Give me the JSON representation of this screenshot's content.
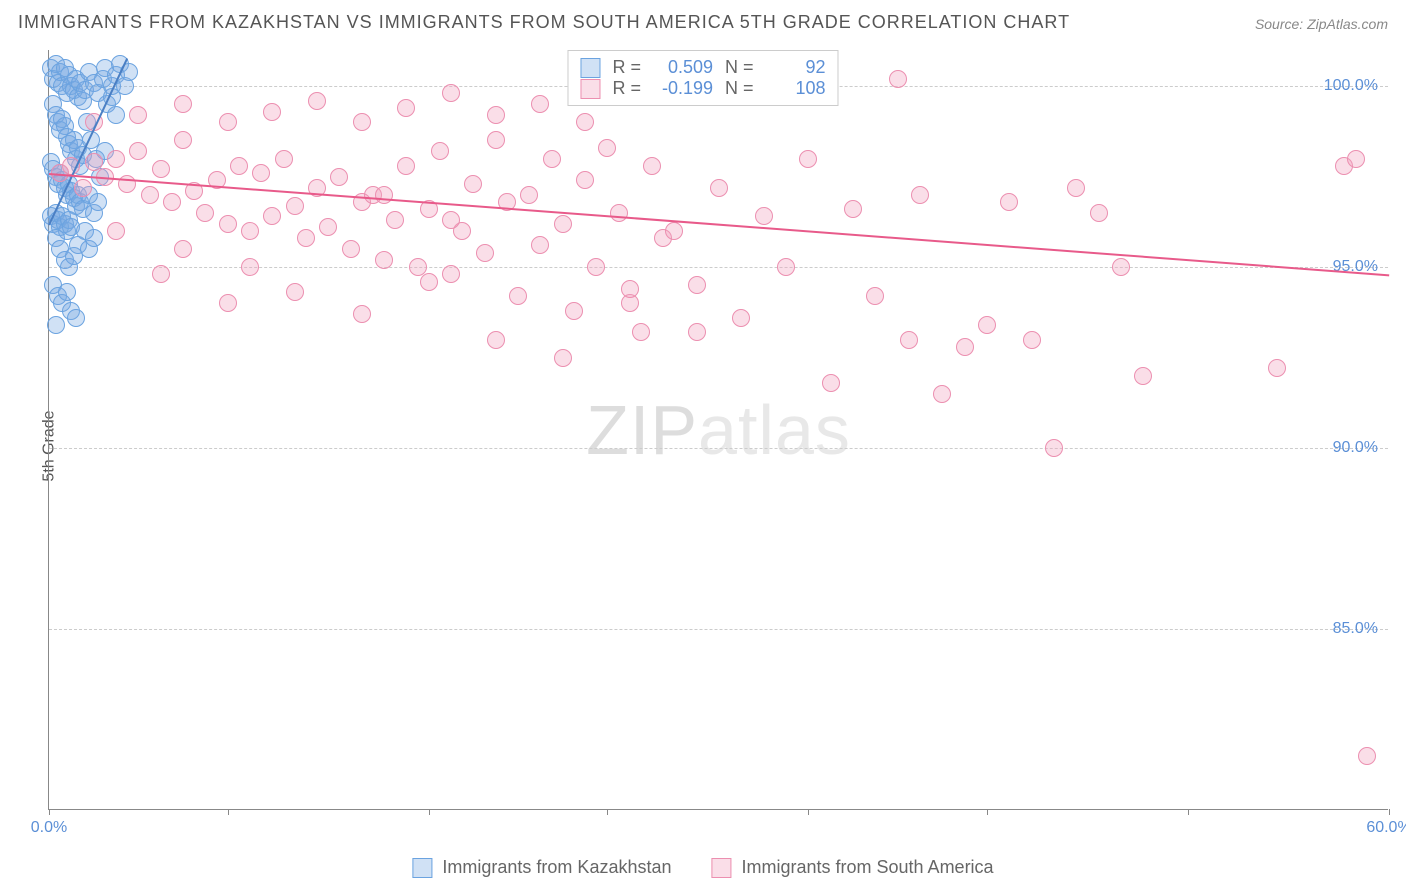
{
  "title": "IMMIGRANTS FROM KAZAKHSTAN VS IMMIGRANTS FROM SOUTH AMERICA 5TH GRADE CORRELATION CHART",
  "source": "Source: ZipAtlas.com",
  "ylabel": "5th Grade",
  "watermark_a": "ZIP",
  "watermark_b": "atlas",
  "chart": {
    "type": "scatter",
    "xlim": [
      0,
      60
    ],
    "ylim": [
      80,
      101
    ],
    "xtick_positions": [
      0,
      8,
      17,
      25,
      34,
      42,
      51,
      60
    ],
    "xtick_labels": {
      "0": "0.0%",
      "60": "60.0%"
    },
    "yticks": [
      85,
      90,
      95,
      100
    ],
    "ytick_labels": [
      "85.0%",
      "90.0%",
      "95.0%",
      "100.0%"
    ],
    "background_color": "#ffffff",
    "grid_color": "#cccccc",
    "axis_color": "#888888",
    "tick_label_color": "#5b8fd6",
    "point_radius": 9,
    "point_stroke_width": 1.5,
    "series": [
      {
        "name": "Immigrants from Kazakhstan",
        "fill": "rgba(120,170,225,0.35)",
        "stroke": "#6ba3e0",
        "r": 0.509,
        "n": 92,
        "trend": {
          "x1": 0,
          "y1": 96.2,
          "x2": 3.5,
          "y2": 100.8,
          "color": "#4a7fc4"
        },
        "points": [
          [
            0.1,
            100.5
          ],
          [
            0.2,
            100.2
          ],
          [
            0.3,
            100.6
          ],
          [
            0.4,
            100.1
          ],
          [
            0.5,
            100.4
          ],
          [
            0.6,
            100.0
          ],
          [
            0.7,
            100.5
          ],
          [
            0.8,
            99.8
          ],
          [
            0.9,
            100.3
          ],
          [
            1.0,
            100.0
          ],
          [
            1.1,
            99.9
          ],
          [
            1.2,
            100.2
          ],
          [
            1.3,
            99.7
          ],
          [
            1.4,
            100.1
          ],
          [
            1.5,
            99.6
          ],
          [
            1.6,
            99.9
          ],
          [
            0.2,
            99.5
          ],
          [
            0.3,
            99.2
          ],
          [
            0.4,
            99.0
          ],
          [
            0.5,
            98.8
          ],
          [
            0.6,
            99.1
          ],
          [
            0.7,
            98.9
          ],
          [
            0.8,
            98.6
          ],
          [
            0.9,
            98.4
          ],
          [
            1.0,
            98.2
          ],
          [
            1.1,
            98.5
          ],
          [
            1.2,
            98.0
          ],
          [
            1.3,
            98.3
          ],
          [
            1.4,
            97.8
          ],
          [
            1.5,
            98.1
          ],
          [
            0.1,
            97.9
          ],
          [
            0.2,
            97.7
          ],
          [
            0.3,
            97.5
          ],
          [
            0.4,
            97.3
          ],
          [
            0.5,
            97.6
          ],
          [
            0.6,
            97.4
          ],
          [
            0.7,
            97.2
          ],
          [
            0.8,
            97.0
          ],
          [
            0.9,
            97.3
          ],
          [
            1.0,
            97.1
          ],
          [
            1.1,
            96.9
          ],
          [
            1.2,
            96.7
          ],
          [
            1.3,
            97.0
          ],
          [
            1.4,
            96.8
          ],
          [
            1.5,
            96.6
          ],
          [
            0.1,
            96.4
          ],
          [
            0.2,
            96.2
          ],
          [
            0.3,
            96.5
          ],
          [
            0.4,
            96.3
          ],
          [
            0.5,
            96.1
          ],
          [
            0.6,
            96.4
          ],
          [
            0.7,
            96.2
          ],
          [
            0.8,
            96.0
          ],
          [
            0.9,
            96.3
          ],
          [
            1.0,
            96.1
          ],
          [
            0.3,
            95.8
          ],
          [
            0.5,
            95.5
          ],
          [
            0.7,
            95.2
          ],
          [
            0.9,
            95.0
          ],
          [
            1.1,
            95.3
          ],
          [
            1.3,
            95.6
          ],
          [
            0.2,
            94.5
          ],
          [
            0.4,
            94.2
          ],
          [
            0.6,
            94.0
          ],
          [
            0.8,
            94.3
          ],
          [
            1.0,
            93.8
          ],
          [
            1.2,
            93.6
          ],
          [
            0.3,
            93.4
          ],
          [
            1.8,
            100.4
          ],
          [
            2.0,
            100.1
          ],
          [
            2.2,
            99.8
          ],
          [
            2.4,
            100.2
          ],
          [
            2.6,
            99.5
          ],
          [
            2.8,
            100.0
          ],
          [
            3.0,
            99.2
          ],
          [
            1.7,
            99.0
          ],
          [
            1.9,
            98.5
          ],
          [
            2.1,
            98.0
          ],
          [
            2.3,
            97.5
          ],
          [
            2.5,
            98.2
          ],
          [
            1.8,
            97.0
          ],
          [
            2.0,
            96.5
          ],
          [
            2.2,
            96.8
          ],
          [
            1.6,
            96.0
          ],
          [
            1.8,
            95.5
          ],
          [
            2.0,
            95.8
          ],
          [
            2.5,
            100.5
          ],
          [
            3.0,
            100.3
          ],
          [
            3.2,
            100.6
          ],
          [
            2.8,
            99.7
          ],
          [
            3.4,
            100.0
          ],
          [
            3.6,
            100.4
          ]
        ]
      },
      {
        "name": "Immigrants from South America",
        "fill": "rgba(240,160,190,0.35)",
        "stroke": "#ec8fb0",
        "r": -0.199,
        "n": 108,
        "trend": {
          "x1": 0,
          "y1": 97.6,
          "x2": 60,
          "y2": 94.8,
          "color": "#e85a8a"
        },
        "points": [
          [
            0.5,
            97.6
          ],
          [
            1.0,
            97.8
          ],
          [
            1.5,
            97.2
          ],
          [
            2.0,
            97.9
          ],
          [
            2.5,
            97.5
          ],
          [
            3.0,
            98.0
          ],
          [
            3.5,
            97.3
          ],
          [
            4.0,
            98.2
          ],
          [
            4.5,
            97.0
          ],
          [
            5.0,
            97.7
          ],
          [
            5.5,
            96.8
          ],
          [
            6.0,
            98.5
          ],
          [
            6.5,
            97.1
          ],
          [
            7.0,
            96.5
          ],
          [
            7.5,
            97.4
          ],
          [
            8.0,
            96.2
          ],
          [
            8.5,
            97.8
          ],
          [
            9.0,
            96.0
          ],
          [
            9.5,
            97.6
          ],
          [
            10.0,
            96.4
          ],
          [
            10.5,
            98.0
          ],
          [
            11.0,
            96.7
          ],
          [
            11.5,
            95.8
          ],
          [
            12.0,
            97.2
          ],
          [
            12.5,
            96.1
          ],
          [
            13.0,
            97.5
          ],
          [
            13.5,
            95.5
          ],
          [
            14.0,
            96.8
          ],
          [
            14.5,
            97.0
          ],
          [
            15.0,
            95.2
          ],
          [
            15.5,
            96.3
          ],
          [
            16.0,
            97.8
          ],
          [
            16.5,
            95.0
          ],
          [
            17.0,
            96.6
          ],
          [
            17.5,
            98.2
          ],
          [
            18.0,
            94.8
          ],
          [
            18.5,
            96.0
          ],
          [
            19.0,
            97.3
          ],
          [
            19.5,
            95.4
          ],
          [
            20.0,
            98.5
          ],
          [
            20.5,
            96.8
          ],
          [
            21.0,
            94.2
          ],
          [
            21.5,
            97.0
          ],
          [
            22.0,
            95.6
          ],
          [
            22.5,
            98.0
          ],
          [
            23.0,
            96.2
          ],
          [
            23.5,
            93.8
          ],
          [
            24.0,
            97.4
          ],
          [
            24.5,
            95.0
          ],
          [
            25.0,
            98.3
          ],
          [
            25.5,
            96.5
          ],
          [
            26.0,
            94.0
          ],
          [
            26.5,
            93.2
          ],
          [
            27.0,
            97.8
          ],
          [
            27.5,
            95.8
          ],
          [
            28.0,
            96.0
          ],
          [
            29.0,
            94.5
          ],
          [
            30.0,
            97.2
          ],
          [
            31.0,
            93.6
          ],
          [
            32.0,
            96.4
          ],
          [
            33.0,
            95.0
          ],
          [
            34.0,
            98.0
          ],
          [
            35.0,
            91.8
          ],
          [
            36.0,
            96.6
          ],
          [
            37.0,
            94.2
          ],
          [
            38.0,
            100.2
          ],
          [
            38.5,
            93.0
          ],
          [
            39.0,
            97.0
          ],
          [
            40.0,
            91.5
          ],
          [
            41.0,
            92.8
          ],
          [
            42.0,
            93.4
          ],
          [
            43.0,
            96.8
          ],
          [
            44.0,
            93.0
          ],
          [
            45.0,
            90.0
          ],
          [
            46.0,
            97.2
          ],
          [
            47.0,
            96.5
          ],
          [
            48.0,
            95.0
          ],
          [
            49.0,
            92.0
          ],
          [
            55.0,
            92.2
          ],
          [
            58.0,
            97.8
          ],
          [
            58.5,
            98.0
          ],
          [
            59.0,
            81.5
          ],
          [
            2.0,
            99.0
          ],
          [
            4.0,
            99.2
          ],
          [
            6.0,
            99.5
          ],
          [
            8.0,
            99.0
          ],
          [
            10.0,
            99.3
          ],
          [
            12.0,
            99.6
          ],
          [
            14.0,
            99.0
          ],
          [
            16.0,
            99.4
          ],
          [
            18.0,
            99.8
          ],
          [
            20.0,
            99.2
          ],
          [
            22.0,
            99.5
          ],
          [
            24.0,
            99.0
          ],
          [
            5.0,
            94.8
          ],
          [
            8.0,
            94.0
          ],
          [
            11.0,
            94.3
          ],
          [
            14.0,
            93.7
          ],
          [
            17.0,
            94.6
          ],
          [
            20.0,
            93.0
          ],
          [
            23.0,
            92.5
          ],
          [
            26.0,
            94.4
          ],
          [
            29.0,
            93.2
          ],
          [
            3.0,
            96.0
          ],
          [
            6.0,
            95.5
          ],
          [
            9.0,
            95.0
          ],
          [
            15.0,
            97.0
          ],
          [
            18.0,
            96.3
          ]
        ]
      }
    ]
  },
  "stats_box": {
    "r_label": "R =",
    "n_label": "N ="
  },
  "legend": {
    "items": [
      "Immigrants from Kazakhstan",
      "Immigrants from South America"
    ]
  }
}
